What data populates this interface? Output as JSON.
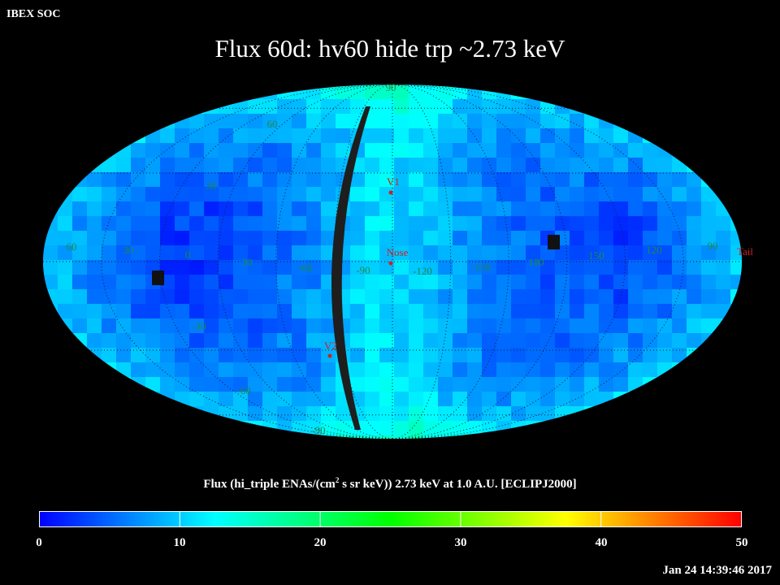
{
  "header": {
    "organization": "IBEX SOC",
    "title": "Flux   60d: hv60 hide trp ~2.73 keV"
  },
  "map": {
    "projection": "Aitoff/Mollweide all-sky (ecliptic)",
    "colors": {
      "background": "#000000",
      "grid": "#1a1a3a",
      "band": "#1e1e1e",
      "marker": "#cc2222",
      "label_green": "#1f8a4a"
    },
    "markers": [
      {
        "label": "V1"
      },
      {
        "label": "Nose"
      },
      {
        "label": "V2"
      },
      {
        "label": "Tail"
      }
    ],
    "longitude_labels": [
      "60",
      "30",
      "0",
      "30",
      "-60",
      "-90",
      "-120",
      "-150",
      "180",
      "150",
      "120",
      "90"
    ],
    "latitude_labels": [
      "90",
      "60",
      "30",
      "-30",
      "-60",
      "-90"
    ],
    "grid": true
  },
  "colorbar": {
    "title_pre": "Flux (hi_triple ENAs/(cm",
    "title_sup": "2",
    "title_post": " s sr keV))  2.73 keV at 1.0 A.U. [ECLIPJ2000]",
    "ticks": [
      "0",
      "10",
      "20",
      "30",
      "40",
      "50"
    ],
    "range": [
      0,
      50
    ],
    "stops": [
      "#0000ff",
      "#00ffff",
      "#00ff00",
      "#ffff00",
      "#ff0000"
    ]
  },
  "timestamp": "Jan 24 14:39:46 2017"
}
